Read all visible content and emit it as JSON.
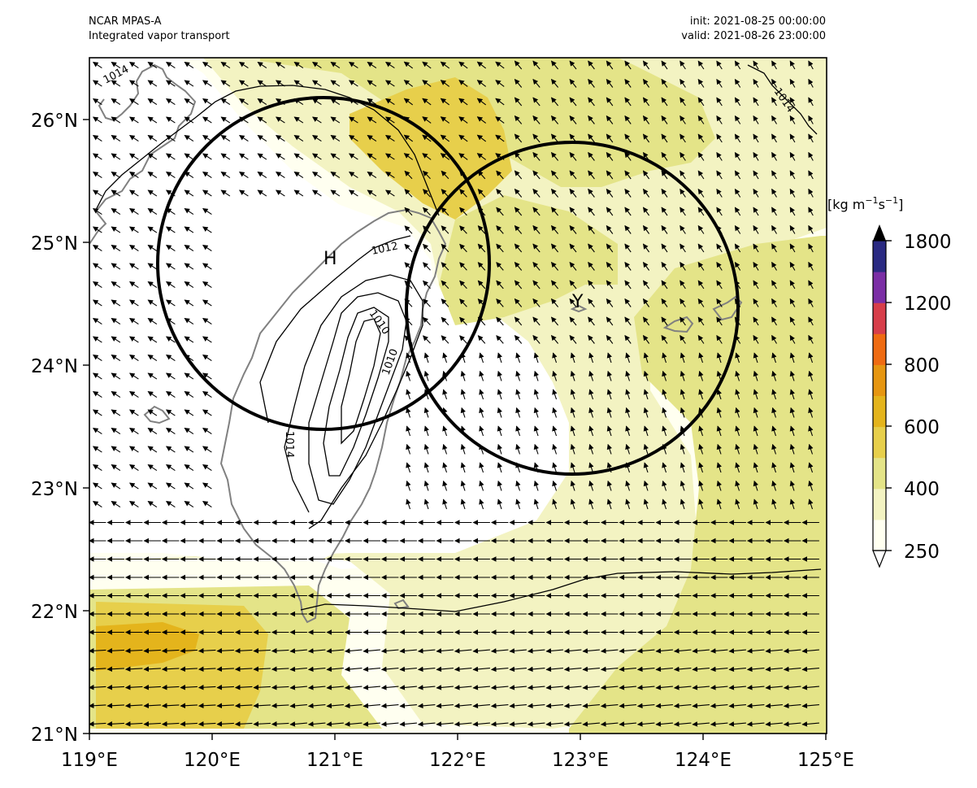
{
  "header": {
    "model": "NCAR MPAS-A",
    "field": "Integrated vapor transport",
    "init": "init: 2021-08-25 00:00:00",
    "valid": "valid: 2021-08-26 23:00:00"
  },
  "map": {
    "extent": {
      "lon": [
        119,
        125
      ],
      "lat": [
        21,
        26.5
      ]
    },
    "lon_ticks": [
      "119°E",
      "120°E",
      "121°E",
      "122°E",
      "123°E",
      "124°E",
      "125°E"
    ],
    "lat_ticks": [
      "21°N",
      "22°N",
      "23°N",
      "24°N",
      "25°N",
      "26°N"
    ],
    "contour_labels": [
      "1014",
      "1014",
      "1012",
      "1010",
      "1010",
      "1014"
    ],
    "markers": [
      {
        "label": "H",
        "lon": 120.94,
        "lat": 24.82
      },
      {
        "label": "Y",
        "lon": 122.95,
        "lat": 24.47
      }
    ],
    "circles": [
      {
        "center_lon": 120.94,
        "center_lat": 24.82,
        "radius_deg": 1.35
      },
      {
        "center_lon": 122.95,
        "center_lat": 24.47,
        "radius_deg": 1.35
      }
    ],
    "colors": {
      "coast": "#808080",
      "contour": "#000000",
      "circle": "#000000"
    }
  },
  "colorbar": {
    "units_pre": "[kg m",
    "units_exp1": "−1",
    "units_mid": "s",
    "units_exp2": "−1",
    "units_post": "]",
    "tick_labels": [
      "250",
      "400",
      "600",
      "800",
      "1200",
      "1800"
    ],
    "levels": [
      250,
      300,
      400,
      500,
      600,
      700,
      800,
      1000,
      1200,
      1500,
      1800
    ],
    "colors": [
      "#fffff0",
      "#f3f3c2",
      "#e4e488",
      "#e7cf4b",
      "#e4b41c",
      "#e69611",
      "#ef6b12",
      "#d73e4a",
      "#7b2ea5",
      "#2a2a82"
    ],
    "over_color": "#000000",
    "under_color": "#ffffff"
  }
}
